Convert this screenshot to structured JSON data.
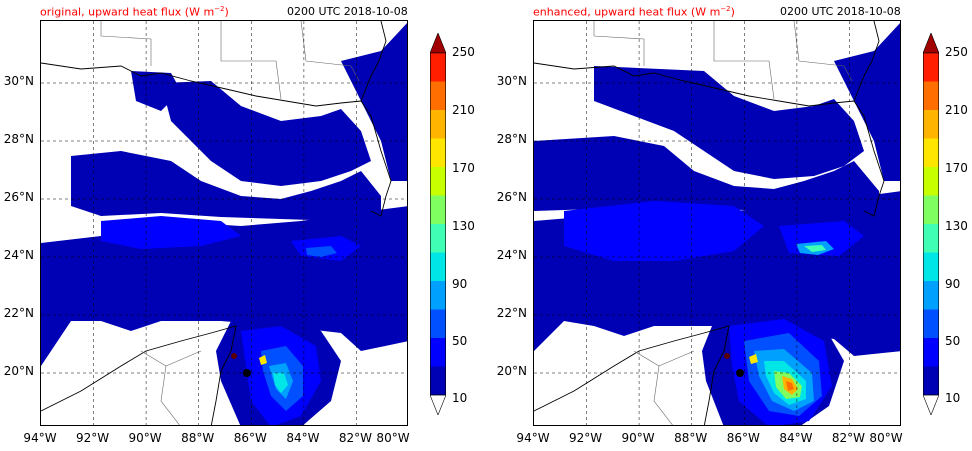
{
  "panels": [
    {
      "id": "original",
      "title": "original, upward heat flux (W m",
      "title_exponent": "−2",
      "title_close": ")",
      "time_label": "0200 UTC 2018-10-08"
    },
    {
      "id": "enhanced",
      "title": "enhanced, upward heat flux (W m",
      "title_exponent": "−2",
      "title_close": ")",
      "time_label": "0200 UTC 2018-10-08"
    }
  ],
  "axes": {
    "latitude_ticks": [
      "30°N",
      "28°N",
      "26°N",
      "24°N",
      "22°N",
      "20°N"
    ],
    "longitude_ticks": [
      "94°W",
      "92°W",
      "90°W",
      "88°W",
      "86°W",
      "84°W",
      "82°W",
      "80°W"
    ],
    "lon_range": [
      -94,
      -80
    ],
    "lat_range": [
      18,
      32
    ]
  },
  "colorbar": {
    "tick_labels": [
      "250",
      "210",
      "170",
      "130",
      "90",
      "50",
      "10"
    ],
    "levels": [
      10,
      30,
      50,
      70,
      90,
      110,
      130,
      150,
      170,
      190,
      210,
      230,
      250
    ],
    "colors": [
      "#0000b4",
      "#0000ff",
      "#0050ff",
      "#00a0ff",
      "#00e6e6",
      "#40ffb4",
      "#80ff60",
      "#c8ff00",
      "#ffe600",
      "#ffb400",
      "#ff6e00",
      "#ff1e00",
      "#a00000"
    ],
    "extend": "both"
  }
}
